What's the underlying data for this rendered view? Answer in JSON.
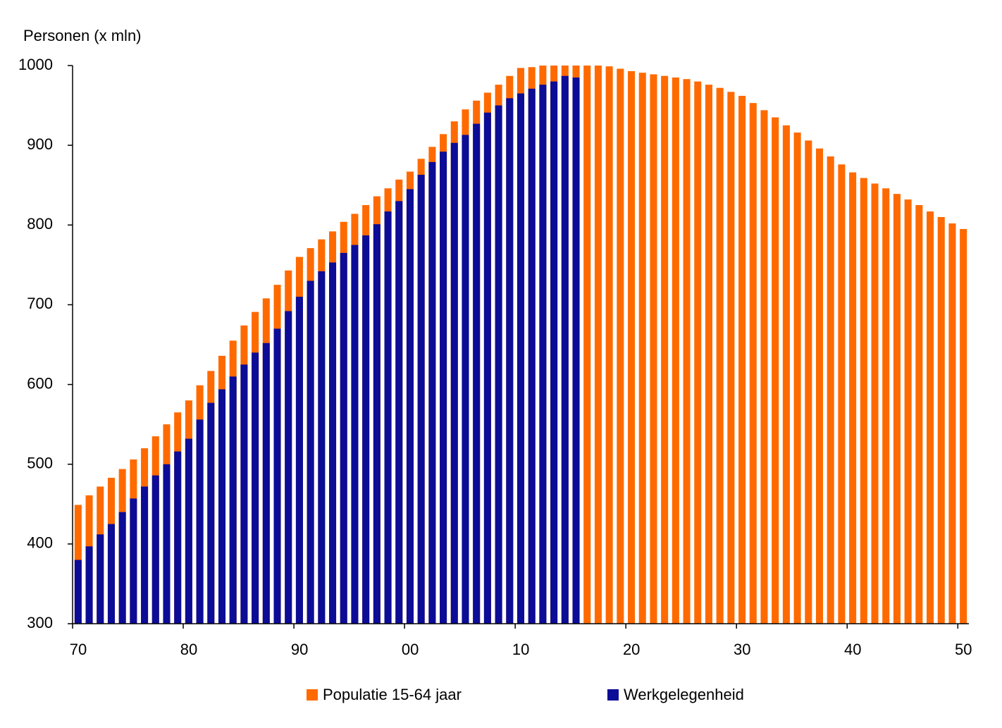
{
  "chart_data": {
    "type": "bar",
    "overlap": true,
    "y_label": "Personen (x mln)",
    "categories": [
      "70",
      null,
      null,
      null,
      null,
      null,
      null,
      null,
      null,
      null,
      "80",
      null,
      null,
      null,
      null,
      null,
      null,
      null,
      null,
      null,
      "90",
      null,
      null,
      null,
      null,
      null,
      null,
      null,
      null,
      null,
      "00",
      null,
      null,
      null,
      null,
      null,
      null,
      null,
      null,
      null,
      "10",
      null,
      null,
      null,
      null,
      null,
      null,
      null,
      null,
      null,
      "20",
      null,
      null,
      null,
      null,
      null,
      null,
      null,
      null,
      null,
      "30",
      null,
      null,
      null,
      null,
      null,
      null,
      null,
      null,
      null,
      "40",
      null,
      null,
      null,
      null,
      null,
      null,
      null,
      null,
      null,
      "50"
    ],
    "series": [
      {
        "name": "Populatie 15-64 jaar",
        "color": "#ff6a00",
        "values": [
          449,
          461,
          472,
          483,
          494,
          506,
          520,
          535,
          550,
          565,
          580,
          599,
          617,
          636,
          655,
          674,
          691,
          708,
          725,
          743,
          760,
          771,
          782,
          792,
          804,
          814,
          825,
          836,
          846,
          857,
          867,
          883,
          898,
          914,
          930,
          945,
          956,
          966,
          976,
          987,
          997,
          998,
          1000,
          1000,
          1000,
          1000,
          1000,
          1000,
          999,
          996,
          993,
          991,
          989,
          987,
          985,
          983,
          980,
          976,
          972,
          967,
          962,
          953,
          944,
          935,
          925,
          916,
          906,
          896,
          886,
          876,
          866,
          859,
          852,
          846,
          839,
          832,
          825,
          817,
          810,
          802,
          795
        ]
      },
      {
        "name": "Werkgelegenheid",
        "color": "#0c0c96",
        "values": [
          380,
          397,
          412,
          425,
          440,
          457,
          472,
          486,
          500,
          516,
          532,
          556,
          577,
          594,
          610,
          625,
          640,
          652,
          670,
          692,
          710,
          730,
          742,
          753,
          765,
          775,
          787,
          801,
          817,
          830,
          845,
          863,
          879,
          892,
          903,
          913,
          927,
          941,
          950,
          959,
          965,
          971,
          976,
          980,
          987,
          985,
          null,
          null,
          null,
          null,
          null,
          null,
          null,
          null,
          null,
          null,
          null,
          null,
          null,
          null,
          null,
          null,
          null,
          null,
          null,
          null,
          null,
          null,
          null,
          null,
          null,
          null,
          null,
          null,
          null,
          null,
          null,
          null,
          null,
          null,
          null
        ]
      }
    ],
    "ylim": [
      300,
      1000
    ],
    "yticks": [
      300,
      400,
      500,
      600,
      700,
      800,
      900,
      1000
    ],
    "grid": false
  }
}
